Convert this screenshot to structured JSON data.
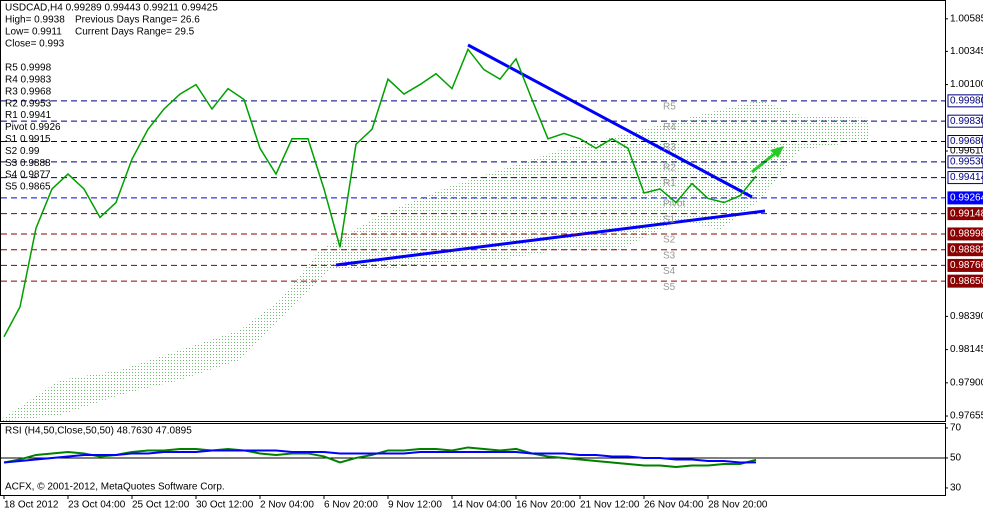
{
  "chart_data": [
    {
      "type": "line",
      "title": "USDCAD,H4  0.99289 0.99443 0.99211 0.99425",
      "info": [
        "High= 0.9938",
        "Previous Days Range= 26.6",
        "Low= 0.9911",
        "Current Days Range= 29.5",
        "Close= 0.993"
      ],
      "categories": [
        "18 Oct 2012",
        null,
        null,
        null,
        "23 Oct 04:00",
        null,
        null,
        null,
        "25 Oct 12:00",
        null,
        null,
        null,
        "30 Oct 12:00",
        null,
        null,
        null,
        "2 Nov 04:00",
        null,
        null,
        null,
        "6 Nov 20:00",
        null,
        null,
        null,
        "9 Nov 12:00",
        null,
        null,
        null,
        "14 Nov 04:00",
        null,
        null,
        null,
        "16 Nov 20:00",
        null,
        null,
        null,
        "21 Nov 12:00",
        null,
        null,
        null,
        "26 Nov 04:00",
        null,
        null,
        null,
        "28 Nov 20:00",
        null,
        null,
        null
      ],
      "series": [
        {
          "name": "USDCAD",
          "color": "#00a000",
          "values": [
            0.9824,
            0.9846,
            0.9904,
            0.9933,
            0.9944,
            0.9933,
            0.9912,
            0.9923,
            0.9955,
            0.9977,
            0.9992,
            1.0003,
            1.001,
            0.9992,
            1.0007,
            0.9999,
            0.9963,
            0.9944,
            0.997,
            0.997,
            0.9933,
            0.989,
            0.9966,
            0.9977,
            1.0014,
            1.0003,
            1.001,
            1.0018,
            1.0007,
            1.0036,
            1.0021,
            1.0014,
            1.0029,
            0.9999,
            0.997,
            0.9974,
            0.997,
            0.9963,
            0.997,
            0.9963,
            0.993,
            0.9933,
            0.9923,
            0.9937,
            0.9926,
            0.9923,
            0.9928,
            0.99425
          ]
        }
      ],
      "ylim": [
        0.97611,
        1.00687
      ],
      "yticks": [
        1.00585,
        1.00345,
        {
          "value": 1.001,
          "label": "1.00100"
        },
        {
          "value": 0.9961,
          "label": "0.99610"
        },
        {
          "value": 0.9839,
          "label": "0.98390"
        },
        0.98145,
        {
          "value": 0.979,
          "label": "0.97900"
        },
        0.97655
      ],
      "levels": [
        {
          "name": "R5",
          "text": "R5 0.9998",
          "value": 0.9998,
          "label": "0.99980",
          "color": "#000080"
        },
        {
          "name": "R4",
          "text": "R4 0.9983",
          "value": 0.9983,
          "label": "0.99830",
          "color": "#000080"
        },
        {
          "name": "R3",
          "text": "R3 0.9968",
          "value": 0.9968,
          "label": "0.99680",
          "color": "#000080"
        },
        {
          "name": "R2",
          "text": "R2 0.9953",
          "value": 0.9953,
          "label": "0.99530",
          "color": "#000080"
        },
        {
          "name": "R1",
          "text": "R1 0.9941",
          "value": 0.99414,
          "label": "0.99414",
          "color": "#000080"
        },
        {
          "name": "Pivot",
          "text": "Pivot 0.9926",
          "value": 0.99264,
          "label": "0.99264",
          "color": "#0000ff"
        },
        {
          "name": "S1",
          "text": "S1 0.9915",
          "value": 0.99148,
          "label": "0.99148",
          "color": "#8b0000"
        },
        {
          "name": "S2",
          "text": "S2 0.99",
          "value": 0.98998,
          "label": "0.98998",
          "color": "#8b0000"
        },
        {
          "name": "S3",
          "text": "S3 0.9888",
          "value": 0.98882,
          "label": "0.98882",
          "color": "#8b0000"
        },
        {
          "name": "S4",
          "text": "S4 0.9877",
          "value": 0.98766,
          "label": "0.98766",
          "color": "#8b0000"
        },
        {
          "name": "S5",
          "text": "S5 0.9865",
          "value": 0.9865,
          "label": "0.98650",
          "color": "#8b0000"
        }
      ]
    },
    {
      "type": "line",
      "title": "RSI (H4,50,Close,50,50) 48.7630 47.0895",
      "annotation": "ACFX, © 2001-2012, MetaQuotes Software Corp.",
      "series": [
        {
          "name": "RSI",
          "color": "#008000",
          "values": [
            47,
            49,
            52,
            53,
            54,
            53,
            51,
            52,
            54,
            55,
            55,
            56,
            56,
            55,
            56,
            55,
            53,
            52,
            53,
            53,
            51,
            47,
            50,
            52,
            55,
            55,
            56,
            56,
            55,
            57,
            56,
            55,
            56,
            53,
            51,
            50,
            49,
            48,
            47,
            46,
            45,
            45,
            44,
            45,
            45,
            46,
            46,
            48.763
          ]
        },
        {
          "name": "Signal",
          "color": "#0000ff",
          "values": [
            47,
            48,
            49,
            50,
            51,
            52,
            52,
            52,
            53,
            53,
            54,
            54,
            54,
            55,
            55,
            55,
            55,
            55,
            54,
            54,
            54,
            53,
            53,
            53,
            53,
            53,
            54,
            54,
            54,
            54,
            54,
            54,
            54,
            53,
            53,
            53,
            52,
            52,
            51,
            51,
            50,
            50,
            49,
            49,
            48,
            48,
            47,
            47.0895
          ]
        }
      ],
      "ylim": [
        25.3,
        73.3
      ],
      "yticks": [
        70,
        50,
        30
      ]
    }
  ]
}
